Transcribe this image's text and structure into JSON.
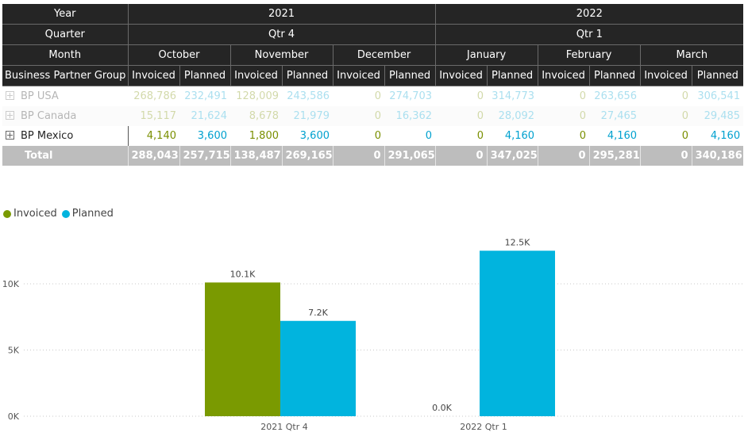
{
  "matrix": {
    "header": {
      "row_labels": [
        "Year",
        "Quarter",
        "Month",
        "Business Partner Group"
      ],
      "years": [
        "2021",
        "2022"
      ],
      "quarters": [
        "Qtr 4",
        "Qtr 1"
      ],
      "months": [
        "October",
        "November",
        "December",
        "January",
        "February",
        "March"
      ],
      "measures": [
        "Invoiced",
        "Planned"
      ]
    },
    "rows": [
      {
        "label": "BP USA",
        "values": [
          "268,786",
          "232,491",
          "128,009",
          "243,586",
          "0",
          "274,703",
          "0",
          "314,773",
          "0",
          "263,656",
          "0",
          "306,541"
        ]
      },
      {
        "label": "BP Canada",
        "values": [
          "15,117",
          "21,624",
          "8,678",
          "21,979",
          "0",
          "16,362",
          "0",
          "28,092",
          "0",
          "27,465",
          "0",
          "29,485"
        ]
      },
      {
        "label": "BP Mexico",
        "values": [
          "4,140",
          "3,600",
          "1,800",
          "3,600",
          "0",
          "0",
          "0",
          "4,160",
          "0",
          "4,160",
          "0",
          "4,160"
        ]
      }
    ],
    "total": {
      "label": "Total",
      "values": [
        "288,043",
        "257,715",
        "138,487",
        "269,165",
        "0",
        "291,065",
        "0",
        "347,025",
        "0",
        "295,281",
        "0",
        "340,186"
      ]
    }
  },
  "chart_data": {
    "type": "bar",
    "categories": [
      "2021 Qtr 4",
      "2022 Qtr 1"
    ],
    "series": [
      {
        "name": "Invoiced",
        "values": [
          10.1,
          0.0
        ],
        "labels": [
          "10.1K",
          "0.0K"
        ],
        "color": "#7a9a01"
      },
      {
        "name": "Planned",
        "values": [
          7.2,
          12.5
        ],
        "labels": [
          "7.2K",
          "12.5K"
        ],
        "color": "#01b4de"
      }
    ],
    "y_ticks": [
      "0K",
      "5K",
      "10K"
    ],
    "ylim": [
      0,
      13
    ],
    "grid": "dotted horizontal",
    "legend_position": "top-left"
  },
  "colors": {
    "invoiced": "#7a9a01",
    "planned": "#01b4de",
    "header_bg": "#252525",
    "total_bg": "#bdbdbd"
  }
}
